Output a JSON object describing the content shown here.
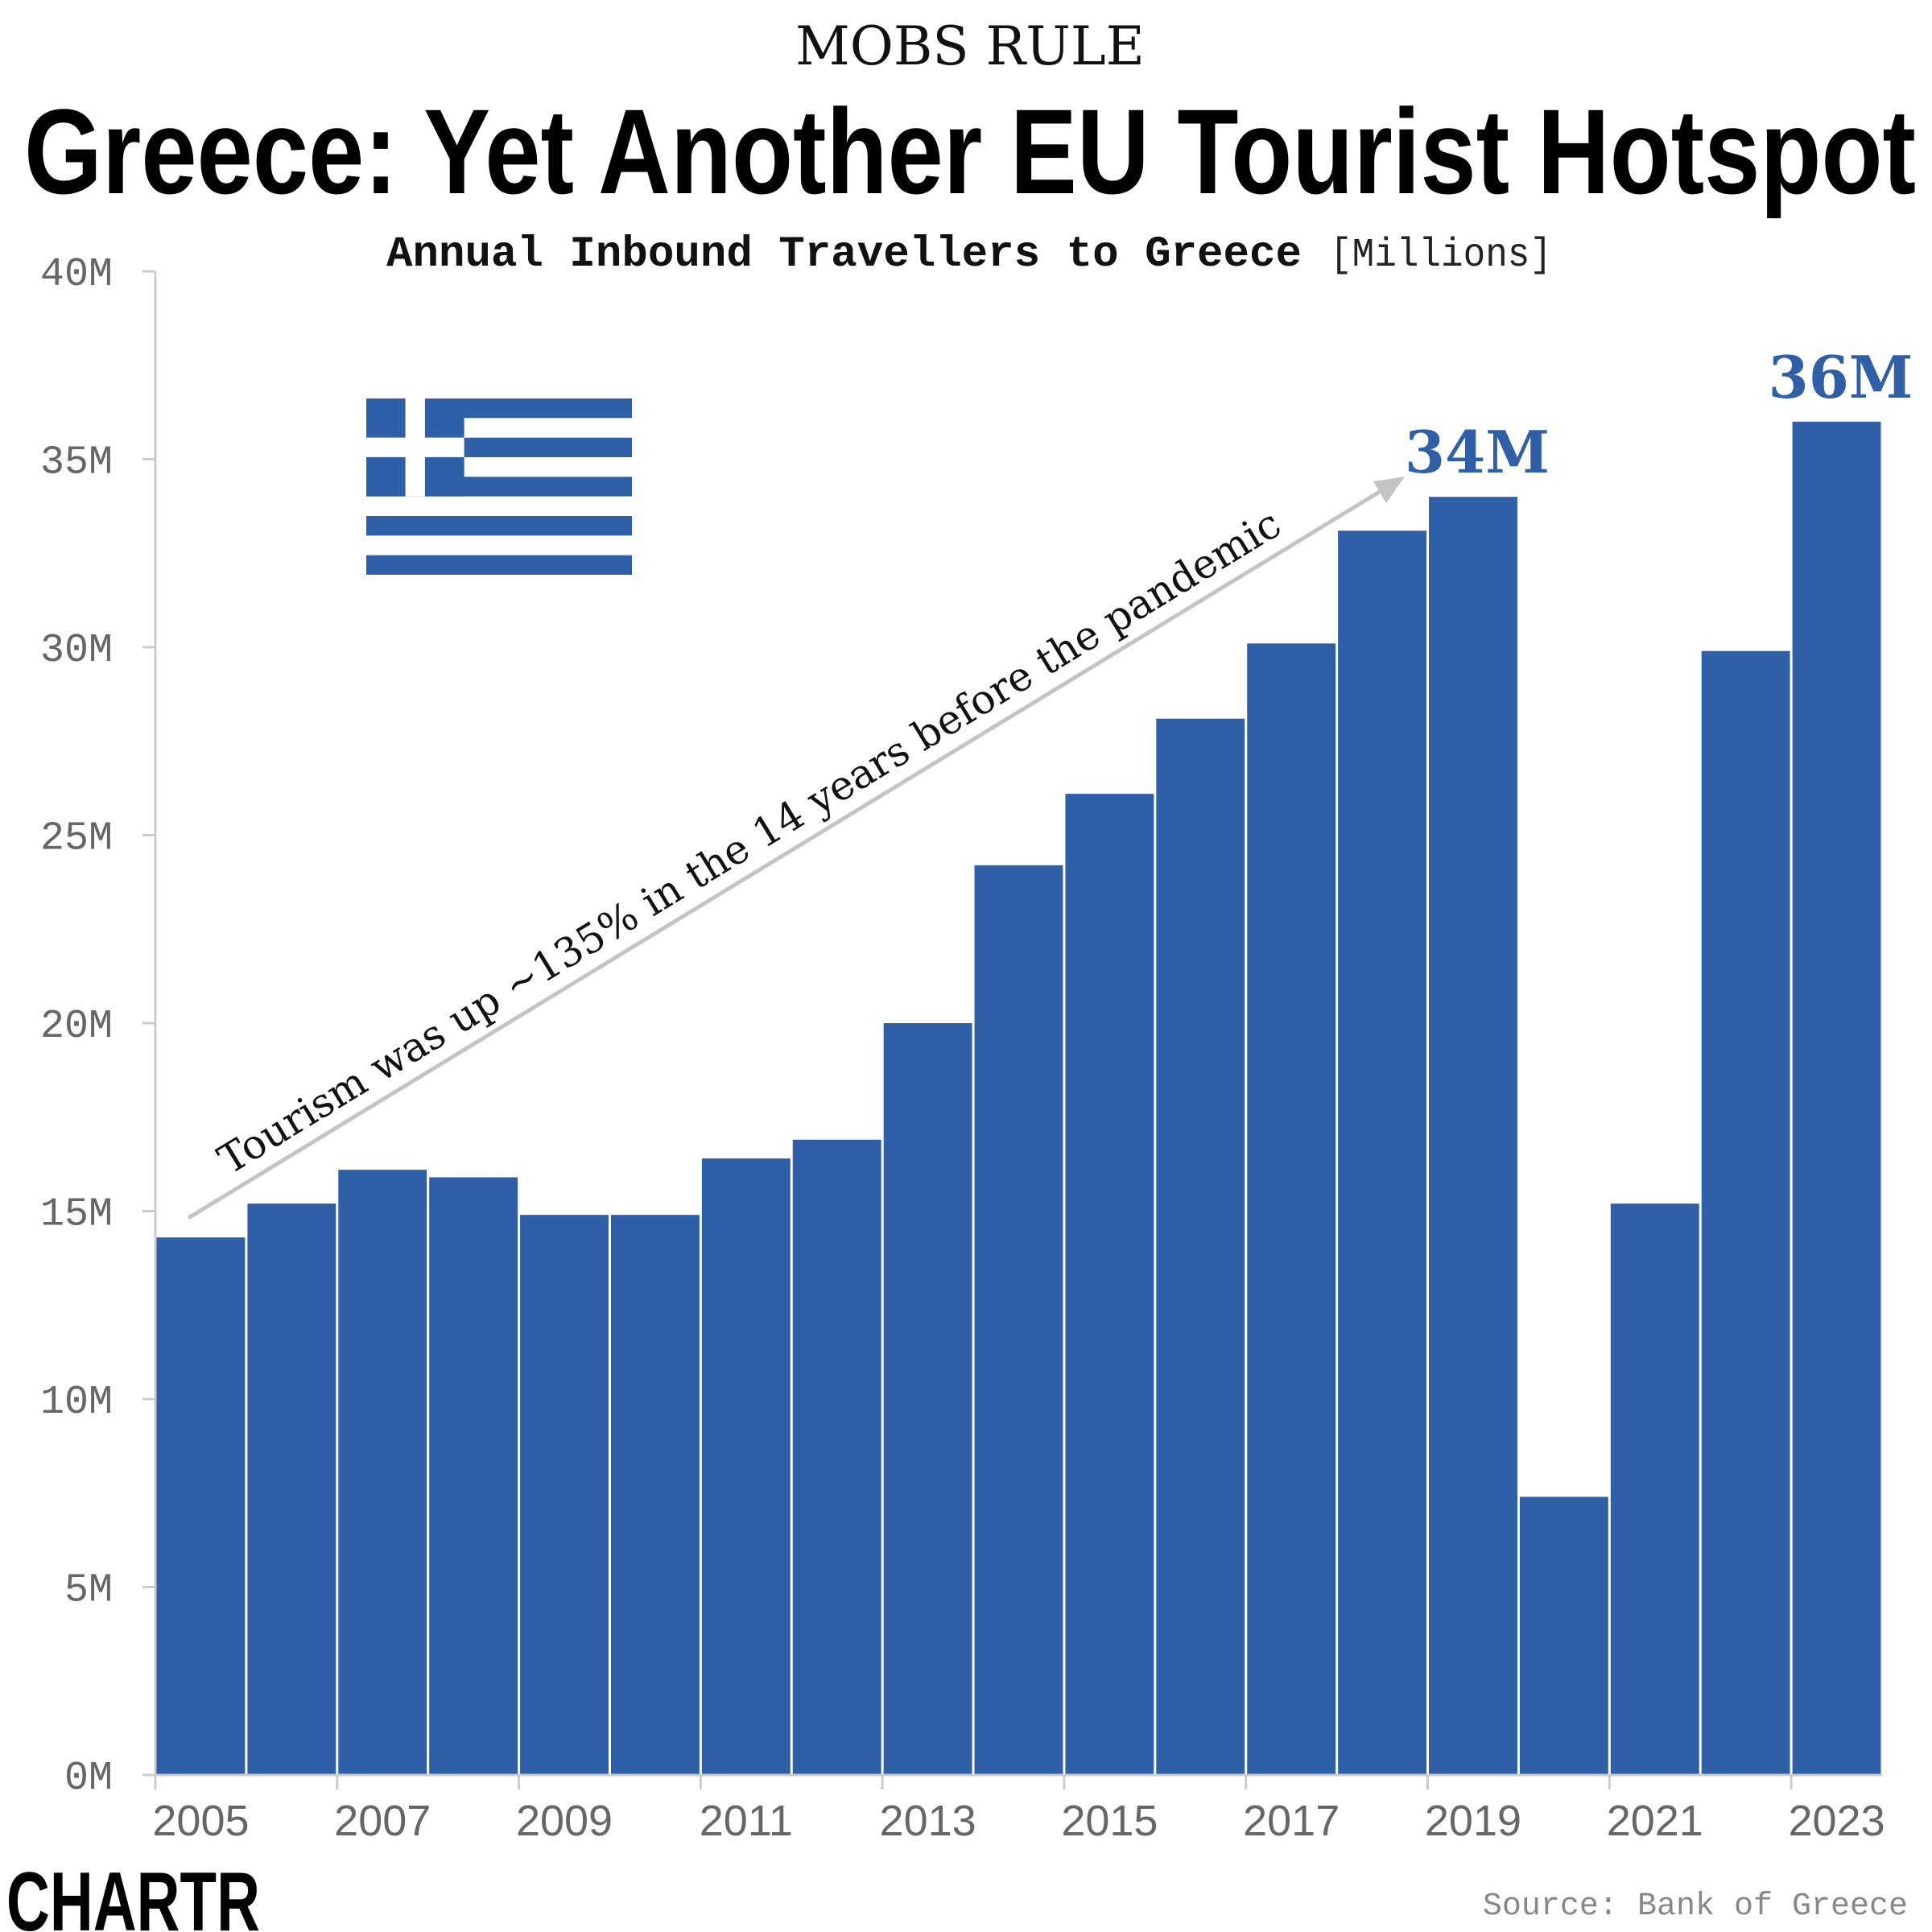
{
  "kicker": "MOBS RULE",
  "logo": "CHARTR",
  "source": "Source: Bank of Greece",
  "colors": {
    "bar": "#2e5fa7",
    "axis": "#cccccc",
    "tick_text": "#666666",
    "arrow": "#c4c4c4",
    "label": "#2e5fa7"
  },
  "annotation": {
    "before": "Tourism was up ",
    "bold": "~135%",
    "after": " in the 14 years before the pandemic"
  },
  "chart_data": {
    "type": "bar",
    "title": "Greece: Yet Another EU Tourist Hotspot",
    "subtitle": "Annual Inbound Travellers to Greece",
    "unit_label": "[Millions]",
    "xlabel": "",
    "ylabel": "",
    "categories": [
      "2005",
      "2006",
      "2007",
      "2008",
      "2009",
      "2010",
      "2011",
      "2012",
      "2013",
      "2014",
      "2015",
      "2016",
      "2017",
      "2018",
      "2019",
      "2020",
      "2021",
      "2022",
      "2023"
    ],
    "values": [
      14.3,
      15.2,
      16.1,
      15.9,
      14.9,
      14.9,
      16.4,
      16.9,
      20.0,
      24.2,
      26.1,
      28.1,
      30.1,
      33.1,
      34.0,
      7.4,
      15.2,
      29.9,
      36.0
    ],
    "ylim": [
      0,
      40
    ],
    "yticks": [
      0,
      5,
      10,
      15,
      20,
      25,
      30,
      35,
      40
    ],
    "ytick_labels": [
      "0M",
      "5M",
      "10M",
      "15M",
      "20M",
      "25M",
      "30M",
      "35M",
      "40M"
    ],
    "xtick_labels": [
      "2005",
      "2007",
      "2009",
      "2011",
      "2013",
      "2015",
      "2017",
      "2019",
      "2021",
      "2023"
    ],
    "data_labels": [
      {
        "category": "2019",
        "text": "34M"
      },
      {
        "category": "2023",
        "text": "36M"
      }
    ],
    "grid": false,
    "legend": "none"
  }
}
